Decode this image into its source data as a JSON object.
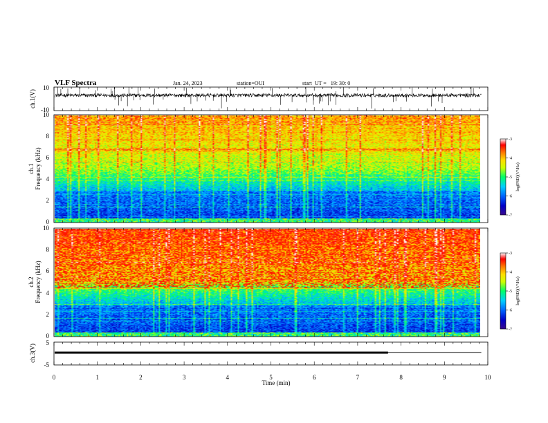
{
  "header": {
    "title": "VLF Spectra",
    "date": "Jan. 24, 2023",
    "station": "station=OUI",
    "start_ut": "start  UT =   19: 30: 0"
  },
  "chart_data": [
    {
      "id": "ch1_waveform",
      "type": "line",
      "ylabel": "ch.1(V)",
      "ylim": [
        -10,
        10
      ],
      "yticks": [
        "10",
        "-10"
      ],
      "xlim": [
        0,
        10
      ],
      "baseline_value": 3,
      "trace_end_min": 9.85
    },
    {
      "id": "ch1_spectrogram",
      "type": "heatmap",
      "ylabel_line1": "ch.1",
      "ylabel_line2": "Frequency (kHz)",
      "ylim": [
        0,
        10
      ],
      "yticks": [
        "0",
        "2",
        "4",
        "6",
        "8",
        "10"
      ],
      "xlim": [
        0,
        10
      ],
      "data_end_min": 9.85,
      "colorbar": {
        "label": "log(PSD)(V²/Hz)",
        "range": [
          -7,
          -3
        ],
        "ticks": [
          "-3",
          "-4",
          "-5",
          "-6",
          "-7"
        ]
      }
    },
    {
      "id": "ch2_spectrogram",
      "type": "heatmap",
      "ylabel_line1": "ch.2",
      "ylabel_line2": "Frequency (kHz)",
      "ylim": [
        0,
        10
      ],
      "yticks": [
        "0",
        "2",
        "4",
        "6",
        "8",
        "10"
      ],
      "xlim": [
        0,
        10
      ],
      "data_end_min": 9.85,
      "colorbar": {
        "label": "log(PSD)(V²/Hz)",
        "range": [
          -7,
          -3
        ],
        "ticks": [
          "-3",
          "-4",
          "-5",
          "-6",
          "-7"
        ]
      }
    },
    {
      "id": "ch3_waveform",
      "type": "line",
      "ylabel": "ch.3(V)",
      "ylim": [
        -5,
        5
      ],
      "yticks": [
        "5",
        "-5"
      ],
      "xlim": [
        0,
        10
      ],
      "xlabel": "Time (min)",
      "xticks": [
        "0",
        "1",
        "2",
        "3",
        "4",
        "5",
        "6",
        "7",
        "8",
        "9",
        "10"
      ],
      "baseline_value": 0.4,
      "trace_end_min": 9.85,
      "thick_segment_end_min": 7.7
    }
  ],
  "colors": {
    "trace": "#000000",
    "colormap": [
      "#3a0a8c",
      "#0000c8",
      "#0066ff",
      "#00ccff",
      "#00ff66",
      "#ccff00",
      "#ffdd00",
      "#ff7a00",
      "#ff0000",
      "#ffffff"
    ]
  }
}
